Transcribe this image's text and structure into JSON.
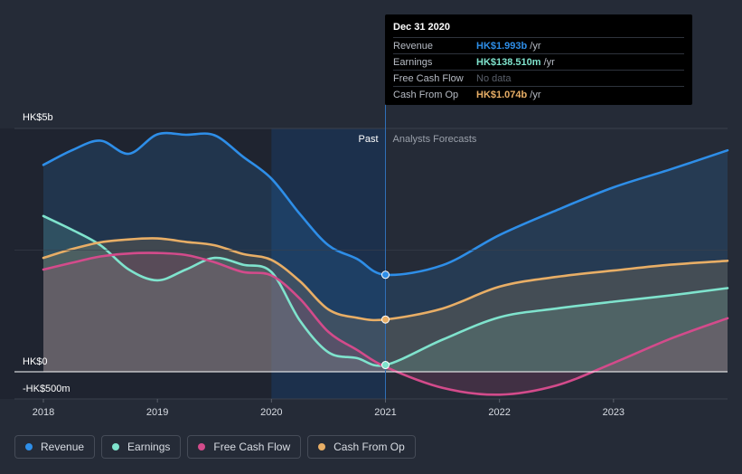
{
  "chart_data": {
    "type": "area",
    "y_unit_label_top": "HK$5b",
    "y_unit_label_zero": "HK$0",
    "y_unit_label_bottom": "-HK$500m",
    "ylim": [
      -0.5,
      5.0
    ],
    "x_ticks": [
      "2018",
      "2019",
      "2020",
      "2021",
      "2022",
      "2023"
    ],
    "regions": {
      "past": "Past",
      "forecast": "Analysts Forecasts",
      "split_x": 2021.0
    },
    "series": [
      {
        "name": "Revenue",
        "color": "#2e8ee8",
        "x": [
          2018.0,
          2018.25,
          2018.5,
          2018.75,
          2019.0,
          2019.25,
          2019.5,
          2019.75,
          2020.0,
          2020.25,
          2020.5,
          2020.75,
          2021.0,
          2021.5,
          2022.0,
          2022.5,
          2023.0,
          2023.5,
          2024.0
        ],
        "y": [
          4.25,
          4.55,
          4.75,
          4.48,
          4.88,
          4.87,
          4.86,
          4.42,
          3.97,
          3.24,
          2.6,
          2.32,
          1.993,
          2.19,
          2.81,
          3.32,
          3.79,
          4.16,
          4.55
        ]
      },
      {
        "name": "Earnings",
        "color": "#7fe3cd",
        "x": [
          2018.0,
          2018.25,
          2018.5,
          2018.75,
          2019.0,
          2019.25,
          2019.5,
          2019.75,
          2020.0,
          2020.25,
          2020.5,
          2020.75,
          2021.0,
          2021.5,
          2022.0,
          2022.5,
          2023.0,
          2023.5,
          2024.0
        ],
        "y": [
          3.2,
          2.92,
          2.6,
          2.1,
          1.88,
          2.1,
          2.34,
          2.2,
          2.05,
          1.05,
          0.4,
          0.28,
          0.1385,
          0.66,
          1.12,
          1.3,
          1.44,
          1.57,
          1.72
        ]
      },
      {
        "name": "Free Cash Flow",
        "color": "#d34b8b",
        "x": [
          2018.0,
          2018.25,
          2018.5,
          2018.75,
          2019.0,
          2019.25,
          2019.5,
          2019.75,
          2020.0,
          2020.25,
          2020.5,
          2020.75,
          2021.0,
          2021.5,
          2022.0,
          2022.5,
          2023.0,
          2023.5,
          2024.0
        ],
        "y": [
          2.1,
          2.24,
          2.37,
          2.43,
          2.44,
          2.4,
          2.25,
          2.05,
          1.98,
          1.5,
          0.82,
          0.45,
          0.1,
          -0.33,
          -0.47,
          -0.28,
          0.18,
          0.68,
          1.1
        ]
      },
      {
        "name": "Cash From Op",
        "color": "#e8ae66",
        "x": [
          2018.0,
          2018.25,
          2018.5,
          2018.75,
          2019.0,
          2019.25,
          2019.5,
          2019.75,
          2020.0,
          2020.25,
          2020.5,
          2020.75,
          2021.0,
          2021.5,
          2022.0,
          2022.5,
          2023.0,
          2023.5,
          2024.0
        ],
        "y": [
          2.34,
          2.52,
          2.66,
          2.72,
          2.74,
          2.67,
          2.6,
          2.42,
          2.3,
          1.86,
          1.28,
          1.11,
          1.074,
          1.3,
          1.75,
          1.95,
          2.08,
          2.2,
          2.28
        ]
      }
    ]
  },
  "tooltip": {
    "date": "Dec 31 2020",
    "rows": [
      {
        "name": "Revenue",
        "value": "HK$1.993b",
        "unit": "/yr",
        "color": "#2e8ee8"
      },
      {
        "name": "Earnings",
        "value": "HK$138.510m",
        "unit": "/yr",
        "color": "#7fe3cd"
      },
      {
        "name": "Free Cash Flow",
        "value": "No data",
        "unit": "",
        "color": ""
      },
      {
        "name": "Cash From Op",
        "value": "HK$1.074b",
        "unit": "/yr",
        "color": "#e8ae66"
      }
    ]
  },
  "legend": [
    {
      "label": "Revenue",
      "color": "#2e8ee8"
    },
    {
      "label": "Earnings",
      "color": "#7fe3cd"
    },
    {
      "label": "Free Cash Flow",
      "color": "#d34b8b"
    },
    {
      "label": "Cash From Op",
      "color": "#e8ae66"
    }
  ]
}
